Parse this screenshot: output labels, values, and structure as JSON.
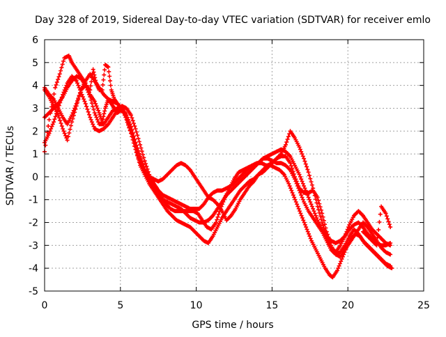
{
  "chart_data": {
    "type": "scatter",
    "title": "Day 328 of 2019, Sidereal Day-to-day VTEC variation (SDTVAR) for receiver emlo",
    "xlabel": "GPS time / hours",
    "ylabel": "SDTVAR / TECUs",
    "xlim": [
      0,
      25
    ],
    "ylim": [
      -5,
      6
    ],
    "xticks": [
      "0",
      "5",
      "10",
      "15",
      "20",
      "25"
    ],
    "yticks": [
      "-5",
      "-4",
      "-3",
      "-2",
      "-1",
      "0",
      "1",
      "2",
      "3",
      "4",
      "5",
      "6"
    ],
    "grid": true,
    "marker": "+",
    "color": "#ff0000",
    "series": [
      {
        "x": [
          0.0,
          0.3,
          0.7,
          1.0,
          1.3,
          1.6,
          1.8,
          2.1,
          2.4,
          2.7,
          3.0,
          3.3,
          3.6,
          3.8,
          4.0,
          4.2,
          4.4,
          4.6,
          4.8,
          5.0,
          5.3,
          5.6,
          5.9,
          6.2,
          6.5,
          6.8,
          7.1,
          7.4,
          7.7,
          8.0,
          8.3,
          8.6,
          8.9,
          9.2,
          9.5,
          9.8,
          10.1,
          10.4,
          10.7,
          11.0,
          11.3,
          11.6,
          11.9,
          12.2,
          12.5,
          12.8,
          13.1,
          13.4,
          13.7,
          14.0,
          14.3,
          14.6,
          14.9,
          15.2,
          15.5,
          15.8,
          16.1,
          16.4,
          16.7,
          17.0,
          17.3,
          17.6,
          17.9,
          18.2,
          18.5,
          18.8,
          19.0,
          19.3,
          19.6,
          19.9,
          20.2,
          20.5,
          20.8,
          21.1,
          21.4,
          21.7,
          22.0,
          22.3,
          22.6,
          22.9
        ],
        "y": [
          1.1,
          2.5,
          3.9,
          4.5,
          5.2,
          5.3,
          5.0,
          4.7,
          4.4,
          4.1,
          3.6,
          3.3,
          2.8,
          2.4,
          3.0,
          3.4,
          3.2,
          3.0,
          2.8,
          2.9,
          2.8,
          2.3,
          1.6,
          0.9,
          0.4,
          0.1,
          -0.2,
          -0.5,
          -0.9,
          -1.2,
          -1.4,
          -1.5,
          -1.5,
          -1.5,
          -1.5,
          -1.5,
          -1.6,
          -1.9,
          -2.2,
          -2.3,
          -2.0,
          -1.4,
          -0.9,
          -0.5,
          -0.1,
          0.2,
          0.3,
          0.4,
          0.5,
          0.6,
          0.6,
          0.5,
          0.5,
          0.4,
          0.3,
          0.1,
          -0.3,
          -0.8,
          -1.3,
          -1.8,
          -2.3,
          -2.8,
          -3.2,
          -3.6,
          -4.0,
          -4.3,
          -4.4,
          -4.1,
          -3.6,
          -3.1,
          -2.7,
          -2.5,
          -2.6,
          -2.9,
          -3.1,
          -3.3,
          -3.5,
          -3.7,
          -3.9,
          -4.0
        ]
      },
      {
        "x": [
          0.0,
          0.3,
          0.6,
          0.9,
          1.2,
          1.5,
          1.8,
          2.1,
          2.4,
          2.7,
          3.0,
          3.2,
          3.4,
          3.6,
          3.8,
          4.0,
          4.2,
          4.4,
          4.6,
          4.8,
          5.1,
          5.4,
          5.7,
          6.0,
          6.3,
          6.6,
          6.9,
          7.2,
          7.5,
          7.8,
          8.1,
          8.4,
          8.7,
          9.0,
          9.3,
          9.6,
          9.9,
          10.2,
          10.5,
          10.8,
          11.1,
          11.4,
          11.7,
          12.0,
          12.3,
          12.6,
          12.9,
          13.2,
          13.5,
          13.8,
          14.1,
          14.4,
          14.7,
          15.0,
          15.3,
          15.6,
          15.9,
          16.2,
          16.5,
          16.8,
          17.1,
          17.4,
          17.7,
          18.0,
          18.3,
          18.6,
          18.9,
          19.2,
          19.5,
          19.8,
          20.1,
          20.4,
          20.7,
          21.0,
          21.3,
          21.6,
          21.9,
          22.2,
          22.5,
          22.8
        ],
        "y": [
          3.9,
          3.6,
          3.4,
          3.0,
          2.6,
          2.3,
          2.7,
          3.2,
          3.8,
          4.0,
          3.8,
          4.7,
          4.1,
          3.8,
          3.8,
          4.9,
          4.8,
          3.8,
          3.4,
          3.2,
          3.0,
          2.5,
          1.9,
          1.2,
          0.5,
          0.1,
          -0.3,
          -0.6,
          -0.9,
          -1.2,
          -1.5,
          -1.7,
          -1.9,
          -2.0,
          -2.1,
          -2.2,
          -2.4,
          -2.6,
          -2.8,
          -2.9,
          -2.6,
          -2.2,
          -1.8,
          -1.5,
          -1.2,
          -0.9,
          -0.6,
          -0.4,
          -0.2,
          -0.1,
          0.1,
          0.2,
          0.4,
          0.6,
          0.8,
          0.9,
          0.9,
          0.6,
          0.0,
          -0.5,
          -0.7,
          -0.7,
          -0.6,
          -0.9,
          -1.6,
          -2.4,
          -3.0,
          -3.4,
          -3.5,
          -3.2,
          -2.9,
          -2.6,
          -2.3,
          -2.0,
          -2.2,
          -2.5,
          -2.8,
          -3.1,
          -3.3,
          -3.4
        ]
      },
      {
        "x": [
          0.0,
          0.3,
          0.6,
          0.9,
          1.2,
          1.5,
          1.8,
          2.1,
          2.4,
          2.7,
          3.0,
          3.3,
          3.6,
          3.9,
          4.2,
          4.5,
          4.8,
          5.1,
          5.4,
          5.7,
          6.0,
          6.3,
          6.6,
          6.9,
          7.2,
          7.5,
          7.8,
          8.1,
          8.4,
          8.7,
          9.0,
          9.3,
          9.6,
          9.9,
          10.2,
          10.5,
          10.8,
          11.1,
          11.4,
          11.7,
          12.0,
          12.3,
          12.6,
          12.9,
          13.2,
          13.5,
          13.8,
          14.1,
          14.4,
          14.7,
          15.0,
          15.3,
          15.6,
          15.9,
          16.2,
          16.5,
          16.8,
          17.1,
          17.4,
          17.7,
          18.0,
          18.3,
          18.6,
          18.9,
          19.2,
          19.5,
          19.8,
          20.1,
          20.4,
          20.7,
          21.0,
          21.3,
          21.6,
          21.9,
          22.2,
          22.5,
          22.8
        ],
        "y": [
          2.6,
          2.8,
          3.0,
          3.2,
          3.5,
          3.9,
          4.2,
          4.4,
          4.3,
          4.0,
          3.5,
          2.8,
          2.3,
          2.3,
          2.6,
          2.9,
          3.0,
          3.0,
          2.7,
          2.2,
          1.5,
          0.9,
          0.3,
          -0.2,
          -0.5,
          -0.8,
          -1.0,
          -1.1,
          -1.2,
          -1.3,
          -1.4,
          -1.6,
          -1.8,
          -1.9,
          -2.0,
          -2.0,
          -1.9,
          -1.7,
          -1.4,
          -1.1,
          -0.8,
          -0.6,
          -0.4,
          -0.2,
          0.0,
          0.2,
          0.4,
          0.6,
          0.8,
          0.8,
          0.7,
          0.6,
          0.6,
          0.5,
          0.3,
          -0.1,
          -0.6,
          -1.1,
          -1.5,
          -1.8,
          -2.1,
          -2.4,
          -2.8,
          -3.2,
          -3.4,
          -3.3,
          -3.0,
          -2.6,
          -2.3,
          -2.5,
          -2.8,
          -3.0,
          -3.2,
          -3.4,
          -3.6,
          -3.8,
          -3.9
        ]
      },
      {
        "x": [
          0.0,
          0.3,
          0.6,
          0.9,
          1.2,
          1.5,
          1.8,
          2.1,
          2.4,
          2.7,
          3.0,
          3.3,
          3.6,
          3.9,
          4.2,
          4.5,
          4.8,
          5.1,
          5.4,
          5.7,
          6.0,
          6.3,
          6.6,
          6.9,
          7.2,
          7.5,
          7.8,
          8.1,
          8.4,
          8.7,
          9.0,
          9.3,
          9.6,
          9.9,
          10.2,
          10.5,
          10.8,
          11.1,
          11.4,
          11.7,
          12.0,
          12.3,
          12.6,
          12.9,
          13.2,
          13.5,
          13.8,
          14.1,
          14.4,
          14.7,
          15.0,
          15.3,
          15.6,
          15.9,
          16.2,
          16.5,
          16.8,
          17.1,
          17.4,
          17.7,
          18.0,
          18.3,
          18.6,
          18.9,
          19.2,
          19.5,
          19.8,
          20.1,
          20.4,
          20.7,
          21.0,
          21.3,
          21.6,
          21.9,
          22.2,
          22.5,
          22.8
        ],
        "y": [
          1.5,
          1.9,
          2.4,
          3.0,
          3.6,
          4.1,
          4.4,
          4.2,
          3.7,
          3.2,
          2.6,
          2.1,
          2.0,
          2.1,
          2.3,
          2.6,
          2.9,
          3.1,
          3.0,
          2.7,
          2.1,
          1.4,
          0.7,
          0.1,
          -0.3,
          -0.6,
          -0.8,
          -0.9,
          -1.0,
          -1.1,
          -1.2,
          -1.3,
          -1.4,
          -1.4,
          -1.4,
          -1.2,
          -0.9,
          -0.7,
          -0.6,
          -0.6,
          -0.5,
          -0.4,
          -0.2,
          0.0,
          0.2,
          0.4,
          0.5,
          0.6,
          0.8,
          0.9,
          1.0,
          1.1,
          1.2,
          1.1,
          0.9,
          0.5,
          0.1,
          -0.4,
          -0.9,
          -1.4,
          -1.9,
          -2.3,
          -2.6,
          -2.8,
          -2.9,
          -2.8,
          -2.6,
          -2.3,
          -2.1,
          -2.0,
          -2.2,
          -2.5,
          -2.7,
          -2.9,
          -3.0,
          -3.0,
          -2.9
        ]
      },
      {
        "x": [
          0.0,
          0.3,
          0.6,
          0.9,
          1.2,
          1.5,
          1.8,
          2.1,
          2.4,
          2.7,
          3.0,
          3.3,
          3.6,
          3.9,
          4.2,
          4.5,
          4.8,
          5.1,
          5.4,
          5.7,
          6.0,
          6.3,
          6.6,
          6.9,
          7.2,
          7.5,
          7.8,
          8.1,
          8.4,
          8.7,
          9.0,
          9.3,
          9.6,
          9.9,
          10.2,
          10.5,
          10.8,
          11.1,
          11.4,
          11.7,
          12.0,
          12.3,
          12.6,
          12.9,
          13.2,
          13.5,
          13.8,
          14.1,
          14.4,
          14.7,
          15.0,
          15.3,
          15.6,
          15.9,
          16.2,
          16.5,
          16.8,
          17.1,
          17.4,
          17.7,
          18.0,
          18.3,
          18.6,
          18.9,
          19.2,
          19.5,
          19.8,
          20.1,
          20.4,
          20.7,
          21.0,
          21.3,
          21.6,
          21.9,
          22.2,
          22.5,
          22.8
        ],
        "y": [
          3.8,
          3.5,
          3.1,
          2.7,
          2.1,
          1.6,
          2.4,
          3.1,
          3.8,
          4.2,
          4.5,
          4.2,
          3.9,
          3.6,
          3.4,
          3.3,
          3.2,
          3.0,
          2.6,
          1.9,
          1.2,
          0.6,
          0.2,
          0.0,
          -0.1,
          -0.2,
          -0.1,
          0.1,
          0.3,
          0.5,
          0.6,
          0.5,
          0.3,
          0.0,
          -0.3,
          -0.6,
          -0.9,
          -1.0,
          -1.2,
          -1.5,
          -1.9,
          -1.7,
          -1.4,
          -1.0,
          -0.7,
          -0.4,
          -0.2,
          0.1,
          0.3,
          0.5,
          0.6,
          0.8,
          1.0,
          1.4,
          2.0,
          1.7,
          1.3,
          0.8,
          0.2,
          -0.5,
          -1.3,
          -2.0,
          -2.6,
          -3.1,
          -3.3,
          -3.0,
          -2.6,
          -2.1,
          -1.7,
          -1.5,
          -1.7,
          -2.0,
          -2.3,
          -2.5,
          -2.7,
          -2.9,
          -3.0
        ]
      },
      {
        "x": [
          21.0,
          21.3,
          21.6,
          21.9,
          22.2,
          22.5,
          22.8
        ],
        "y": [
          -2.4,
          -2.6,
          -2.8,
          -3.0,
          -1.3,
          -1.6,
          -2.2
        ]
      }
    ]
  }
}
